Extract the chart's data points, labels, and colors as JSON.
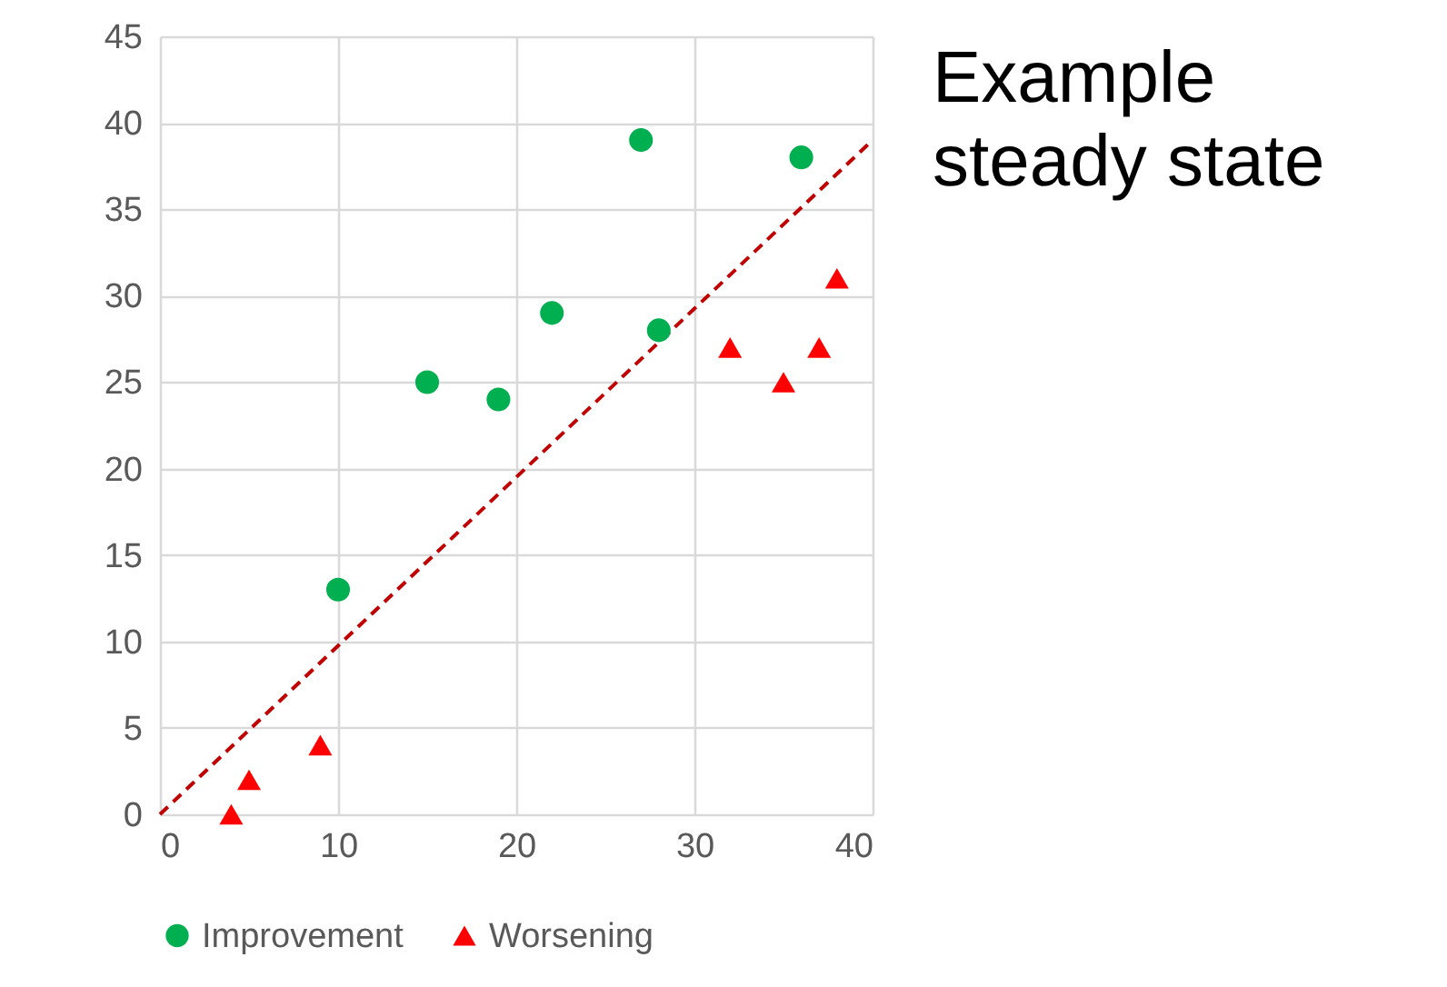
{
  "chart_data": {
    "type": "scatter",
    "annotations": [
      "Example\nsteady state"
    ],
    "xlim": [
      0,
      40
    ],
    "xticks": [
      0,
      10,
      20,
      30,
      40
    ],
    "ylim": [
      0,
      45
    ],
    "yticks": [
      0,
      5,
      10,
      15,
      20,
      25,
      30,
      35,
      40,
      45
    ],
    "grid": true,
    "legend": "bottom",
    "series": [
      {
        "type": "line",
        "x": [
          0,
          40
        ],
        "values": [
          0,
          39
        ],
        "color": "#c00000",
        "line_style": "dashed"
      },
      {
        "name": "Improvement",
        "color": "#00b050",
        "marker": "circle",
        "x": [
          10,
          15,
          19,
          22,
          27,
          28,
          36
        ],
        "values": [
          13,
          25,
          24,
          29,
          39,
          28,
          38
        ]
      },
      {
        "name": "Worsening",
        "color": "#ff0000",
        "marker": "triangle",
        "x": [
          4,
          5,
          9,
          32,
          35,
          37,
          38
        ],
        "values": [
          0,
          2,
          4,
          27,
          25,
          27,
          31
        ]
      }
    ]
  }
}
